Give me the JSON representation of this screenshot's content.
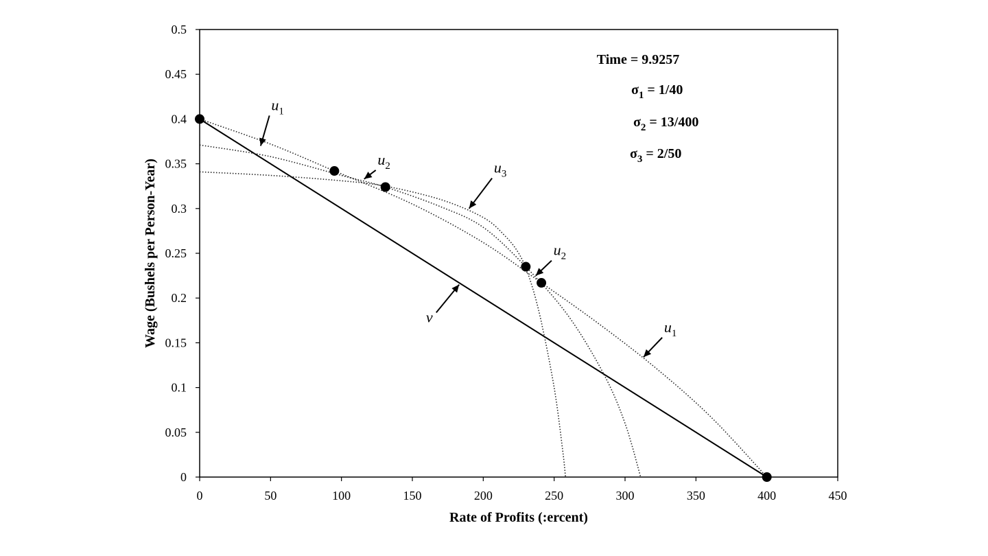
{
  "chart_data": {
    "type": "line",
    "title": "",
    "xlabel": "Rate of Profits (:ercent)",
    "ylabel": "Wage (Bushels per Person-Year)",
    "xlim": [
      0,
      450
    ],
    "ylim": [
      0,
      0.5
    ],
    "x_ticks": [
      "0",
      "50",
      "100",
      "150",
      "200",
      "250",
      "300",
      "350",
      "400",
      "450"
    ],
    "y_ticks": [
      "0",
      "0.05",
      "0.1",
      "0.15",
      "0.2",
      "0.25",
      "0.3",
      "0.35",
      "0.4",
      "0.45",
      "0.5"
    ],
    "x_tick_values": [
      0,
      50,
      100,
      150,
      200,
      250,
      300,
      350,
      400,
      450
    ],
    "y_tick_values": [
      0,
      0.05,
      0.1,
      0.15,
      0.2,
      0.25,
      0.3,
      0.35,
      0.4,
      0.45,
      0.5
    ],
    "annotations": {
      "time": "Time = 9.9257",
      "sigmas": [
        {
          "name": "σ",
          "sub": "1",
          "value": " = 1/40"
        },
        {
          "name": "σ",
          "sub": "2",
          "value": " = 13/400"
        },
        {
          "name": "σ",
          "sub": "3",
          "value": " = 2/50"
        }
      ]
    },
    "series": [
      {
        "name": "v",
        "style": "solid",
        "x": [
          0,
          400
        ],
        "y": [
          0.4,
          0
        ]
      },
      {
        "name": "u1",
        "style": "dotted",
        "x": [
          0,
          50,
          95,
          150,
          200,
          241,
          280,
          320,
          360,
          400
        ],
        "y": [
          0.4,
          0.372,
          0.342,
          0.305,
          0.262,
          0.217,
          0.173,
          0.124,
          0.068,
          0
        ]
      },
      {
        "name": "u2",
        "style": "dotted",
        "x": [
          0,
          50,
          100,
          131,
          170,
          200,
          230,
          260,
          285,
          300,
          311
        ],
        "y": [
          0.371,
          0.358,
          0.337,
          0.324,
          0.302,
          0.279,
          0.235,
          0.18,
          0.115,
          0.06,
          0
        ]
      },
      {
        "name": "u3",
        "style": "dotted",
        "x": [
          0,
          50,
          100,
          131,
          170,
          200,
          215,
          225,
          232,
          240,
          250,
          256,
          258
        ],
        "y": [
          0.341,
          0.337,
          0.331,
          0.325,
          0.31,
          0.29,
          0.27,
          0.25,
          0.225,
          0.18,
          0.1,
          0.03,
          0
        ]
      }
    ],
    "points": [
      {
        "x": 0,
        "y": 0.4
      },
      {
        "x": 95,
        "y": 0.342
      },
      {
        "x": 131,
        "y": 0.324
      },
      {
        "x": 230,
        "y": 0.235
      },
      {
        "x": 241,
        "y": 0.217
      },
      {
        "x": 400,
        "y": 0
      }
    ],
    "curve_labels": [
      {
        "base": "u",
        "sub": "1",
        "x": 55,
        "y": 0.41,
        "arrow_to": [
          43,
          0.37
        ]
      },
      {
        "base": "u",
        "sub": "2",
        "x": 130,
        "y": 0.349,
        "arrow_to": [
          116,
          0.333
        ]
      },
      {
        "base": "u",
        "sub": "3",
        "x": 212,
        "y": 0.34,
        "arrow_to": [
          190,
          0.3
        ]
      },
      {
        "base": "u",
        "sub": "2",
        "x": 254,
        "y": 0.248,
        "arrow_to": [
          237,
          0.225
        ]
      },
      {
        "base": "u",
        "sub": "1",
        "x": 332,
        "y": 0.162,
        "arrow_to": [
          313,
          0.134
        ]
      },
      {
        "base": "v",
        "sub": "",
        "x": 162,
        "y": 0.173,
        "arrow_to": [
          183,
          0.215
        ]
      }
    ]
  }
}
